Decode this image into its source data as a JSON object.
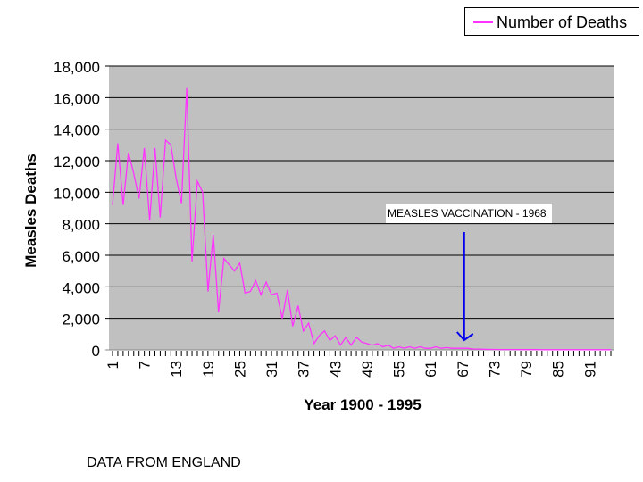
{
  "legend": {
    "label": "Number of Deaths"
  },
  "annotation": {
    "text": "MEASLES VACCINATION - 1968"
  },
  "footer": {
    "text": "DATA  FROM ENGLAND"
  },
  "colors": {
    "series": "#ff33ff",
    "plot_background": "#c0c0c0",
    "gridline": "#000000",
    "arrow": "#0000ee"
  },
  "chart_data": {
    "type": "line",
    "xlabel": "Year 1900 - 1995",
    "ylabel": "Measles Deaths",
    "xlim": [
      1,
      95
    ],
    "ylim": [
      0,
      18000
    ],
    "yticks": [
      0,
      2000,
      4000,
      6000,
      8000,
      10000,
      12000,
      14000,
      16000,
      18000
    ],
    "ytick_labels": [
      "0",
      "2,000",
      "4,000",
      "6,000",
      "8,000",
      "10,000",
      "12,000",
      "14,000",
      "16,000",
      "18,000"
    ],
    "xtick_labels": [
      "1",
      "7",
      "13",
      "19",
      "25",
      "31",
      "37",
      "43",
      "49",
      "55",
      "61",
      "67",
      "73",
      "79",
      "85",
      "91"
    ],
    "xtick_values": [
      1,
      7,
      13,
      19,
      25,
      31,
      37,
      43,
      49,
      55,
      61,
      67,
      73,
      79,
      85,
      91
    ],
    "grid": "horizontal",
    "legend_position": "top-right",
    "annotation": {
      "text_ref": "MEASLES VACCINATION - 1968",
      "arrow_x": 67
    },
    "series": [
      {
        "name": "Number of Deaths",
        "x": [
          1,
          2,
          3,
          4,
          5,
          6,
          7,
          8,
          9,
          10,
          11,
          12,
          13,
          14,
          15,
          16,
          17,
          18,
          19,
          20,
          21,
          22,
          23,
          24,
          25,
          26,
          27,
          28,
          29,
          30,
          31,
          32,
          33,
          34,
          35,
          36,
          37,
          38,
          39,
          40,
          41,
          42,
          43,
          44,
          45,
          46,
          47,
          48,
          49,
          50,
          51,
          52,
          53,
          54,
          55,
          56,
          57,
          58,
          59,
          60,
          61,
          62,
          63,
          64,
          65,
          66,
          67,
          68,
          69,
          70,
          71,
          72,
          73,
          74,
          75,
          76,
          77,
          78,
          79,
          80,
          81,
          82,
          83,
          84,
          85,
          86,
          87,
          88,
          89,
          90,
          91,
          92,
          93,
          94,
          95
        ],
        "values": [
          9200,
          13100,
          9200,
          12500,
          11200,
          9600,
          12800,
          8200,
          12800,
          8400,
          13300,
          13000,
          10900,
          9300,
          16600,
          5600,
          10700,
          10000,
          3700,
          7300,
          2400,
          5800,
          5400,
          5000,
          5500,
          3600,
          3700,
          4400,
          3500,
          4300,
          3500,
          3600,
          2000,
          3800,
          1500,
          2800,
          1200,
          1700,
          400,
          900,
          1200,
          600,
          900,
          300,
          800,
          300,
          800,
          500,
          400,
          300,
          400,
          200,
          300,
          100,
          200,
          100,
          200,
          100,
          200,
          100,
          100,
          200,
          100,
          150,
          100,
          100,
          100,
          100,
          50,
          50,
          40,
          30,
          30,
          25,
          20,
          20,
          20,
          15,
          15,
          15,
          20,
          10,
          10,
          10,
          10,
          10,
          10,
          10,
          10,
          10,
          10,
          10,
          10,
          10,
          10
        ]
      }
    ]
  }
}
